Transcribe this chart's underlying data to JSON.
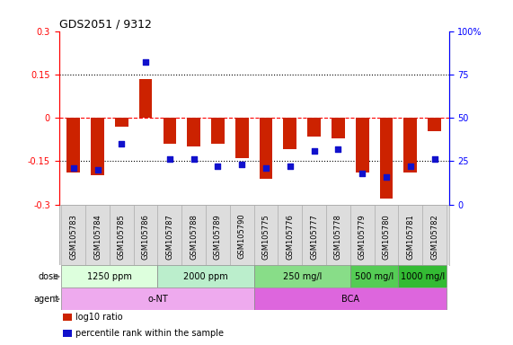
{
  "title": "GDS2051 / 9312",
  "samples": [
    "GSM105783",
    "GSM105784",
    "GSM105785",
    "GSM105786",
    "GSM105787",
    "GSM105788",
    "GSM105789",
    "GSM105790",
    "GSM105775",
    "GSM105776",
    "GSM105777",
    "GSM105778",
    "GSM105779",
    "GSM105780",
    "GSM105781",
    "GSM105782"
  ],
  "log10_ratio": [
    -0.19,
    -0.2,
    -0.03,
    0.135,
    -0.09,
    -0.1,
    -0.09,
    -0.14,
    -0.21,
    -0.11,
    -0.065,
    -0.07,
    -0.19,
    -0.28,
    -0.19,
    -0.045
  ],
  "percentile_rank": [
    21,
    20,
    35,
    82,
    26,
    26,
    22,
    23,
    21,
    22,
    31,
    32,
    18,
    16,
    22,
    26
  ],
  "bar_color": "#cc2200",
  "dot_color": "#1111cc",
  "ylim": [
    -0.3,
    0.3
  ],
  "yticks_left": [
    -0.3,
    -0.15,
    0,
    0.15,
    0.3
  ],
  "yticks_right": [
    0,
    25,
    50,
    75,
    100
  ],
  "hlines": [
    -0.15,
    0.0,
    0.15
  ],
  "hline_styles": [
    "dotted",
    "dashed",
    "dotted"
  ],
  "hline_colors": [
    "black",
    "red",
    "black"
  ],
  "dose_groups": [
    {
      "label": "1250 ppm",
      "start": 0,
      "end": 4,
      "color": "#ddffdd"
    },
    {
      "label": "2000 ppm",
      "start": 4,
      "end": 8,
      "color": "#bbeecc"
    },
    {
      "label": "250 mg/l",
      "start": 8,
      "end": 12,
      "color": "#88dd88"
    },
    {
      "label": "500 mg/l",
      "start": 12,
      "end": 14,
      "color": "#55cc55"
    },
    {
      "label": "1000 mg/l",
      "start": 14,
      "end": 16,
      "color": "#33bb33"
    }
  ],
  "agent_groups": [
    {
      "label": "o-NT",
      "start": 0,
      "end": 8,
      "color": "#eeaaee"
    },
    {
      "label": "BCA",
      "start": 8,
      "end": 16,
      "color": "#dd66dd"
    }
  ],
  "legend_items": [
    {
      "color": "#cc2200",
      "label": "log10 ratio"
    },
    {
      "color": "#1111cc",
      "label": "percentile rank within the sample"
    }
  ],
  "label_fontsize": 7,
  "tick_fontsize": 7,
  "sample_fontsize": 6
}
